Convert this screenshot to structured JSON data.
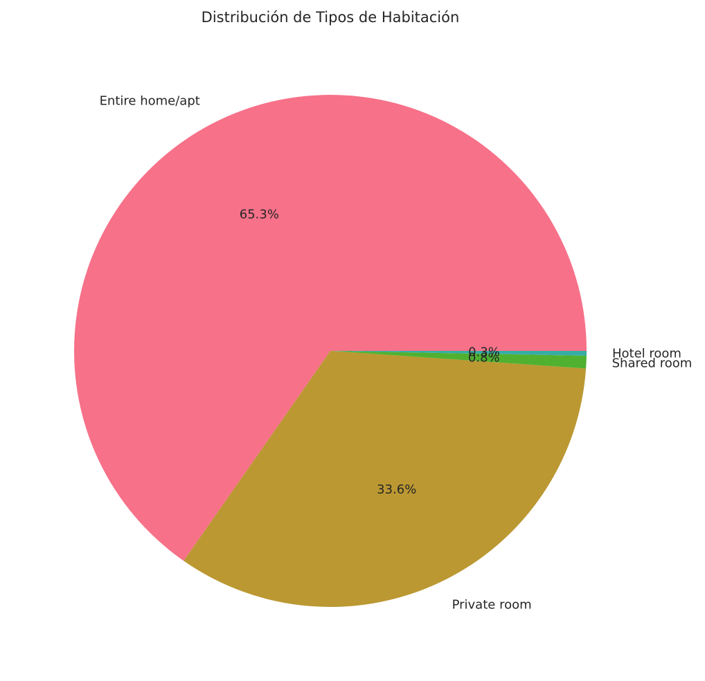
{
  "chart_data": {
    "type": "pie",
    "title": "Distribución de Tipos de Habitación",
    "categories": [
      "Entire home/apt",
      "Private room",
      "Shared room",
      "Hotel room"
    ],
    "values": [
      65.3,
      33.6,
      0.8,
      0.3
    ],
    "percent_labels": [
      "65.3%",
      "33.6%",
      "0.8%",
      "0.3%"
    ],
    "colors": [
      "#f77189",
      "#bb9832",
      "#50b131",
      "#36ada4"
    ],
    "start_angle_deg": 0,
    "direction": "counterclockwise",
    "legend": "none"
  }
}
